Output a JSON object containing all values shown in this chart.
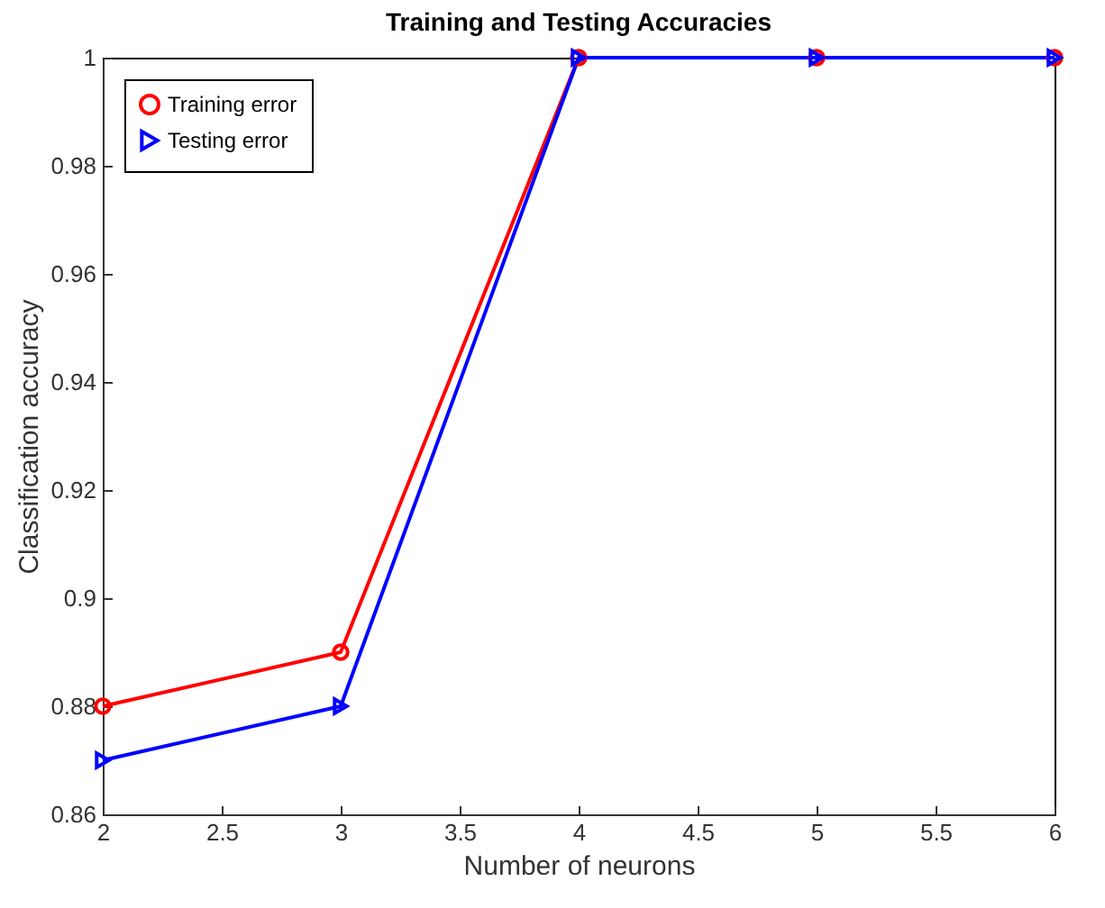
{
  "chart_data": {
    "type": "line",
    "title": "Training and Testing Accuracies",
    "xlabel": "Number of neurons",
    "ylabel": "Classification accuracy",
    "x": [
      2,
      3,
      4,
      5,
      6
    ],
    "series": [
      {
        "name": "Training error",
        "color": "#ff0000",
        "marker": "circle",
        "values": [
          0.88,
          0.89,
          1,
          1,
          1
        ]
      },
      {
        "name": "Testing error",
        "color": "#0000ff",
        "marker": "triangle",
        "values": [
          0.87,
          0.88,
          1,
          1,
          1
        ]
      }
    ],
    "xlim": [
      2,
      6
    ],
    "xticks": [
      2,
      2.5,
      3,
      3.5,
      4,
      4.5,
      5,
      5.5,
      6
    ],
    "ylim": [
      0.86,
      1
    ],
    "yticks": [
      0.86,
      0.88,
      0.9,
      0.92,
      0.94,
      0.96,
      0.98,
      1
    ],
    "grid": false,
    "legend": "top left",
    "line_style": "solid"
  }
}
